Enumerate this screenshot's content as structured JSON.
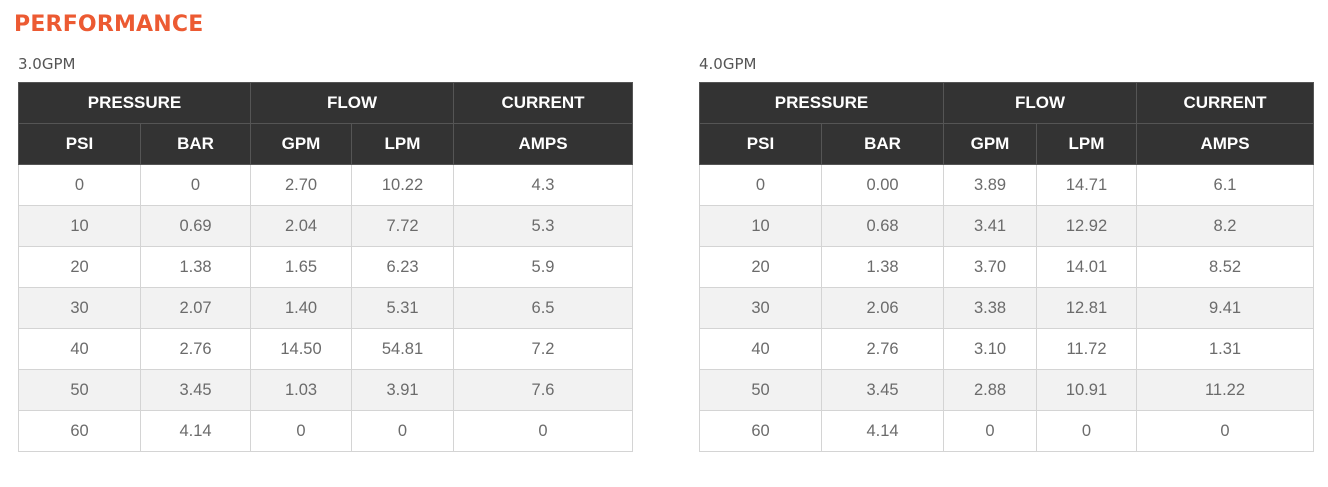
{
  "page": {
    "title": "PERFORMANCE"
  },
  "tables": [
    {
      "caption": "3.0GPM",
      "group_headers": [
        "PRESSURE",
        "FLOW",
        "CURRENT"
      ],
      "columns": [
        "PSI",
        "BAR",
        "GPM",
        "LPM",
        "AMPS"
      ],
      "rows": [
        [
          "0",
          "0",
          "2.70",
          "10.22",
          "4.3"
        ],
        [
          "10",
          "0.69",
          "2.04",
          "7.72",
          "5.3"
        ],
        [
          "20",
          "1.38",
          "1.65",
          "6.23",
          "5.9"
        ],
        [
          "30",
          "2.07",
          "1.40",
          "5.31",
          "6.5"
        ],
        [
          "40",
          "2.76",
          "14.50",
          "54.81",
          "7.2"
        ],
        [
          "50",
          "3.45",
          "1.03",
          "3.91",
          "7.6"
        ],
        [
          "60",
          "4.14",
          "0",
          "0",
          "0"
        ]
      ]
    },
    {
      "caption": "4.0GPM",
      "group_headers": [
        "PRESSURE",
        "FLOW",
        "CURRENT"
      ],
      "columns": [
        "PSI",
        "BAR",
        "GPM",
        "LPM",
        "AMPS"
      ],
      "rows": [
        [
          "0",
          "0.00",
          "3.89",
          "14.71",
          "6.1"
        ],
        [
          "10",
          "0.68",
          "3.41",
          "12.92",
          "8.2"
        ],
        [
          "20",
          "1.38",
          "3.70",
          "14.01",
          "8.52"
        ],
        [
          "30",
          "2.06",
          "3.38",
          "12.81",
          "9.41"
        ],
        [
          "40",
          "2.76",
          "3.10",
          "11.72",
          "1.31"
        ],
        [
          "50",
          "3.45",
          "2.88",
          "10.91",
          "11.22"
        ],
        [
          "60",
          "4.14",
          "0",
          "0",
          "0"
        ]
      ]
    }
  ],
  "colors": {
    "title": "#ec5a32",
    "header_bg": "#333333",
    "header_text": "#ffffff",
    "cell_text": "#6b6b6b",
    "stripe": "#f2f2f2",
    "border": "#d4d4d4"
  }
}
